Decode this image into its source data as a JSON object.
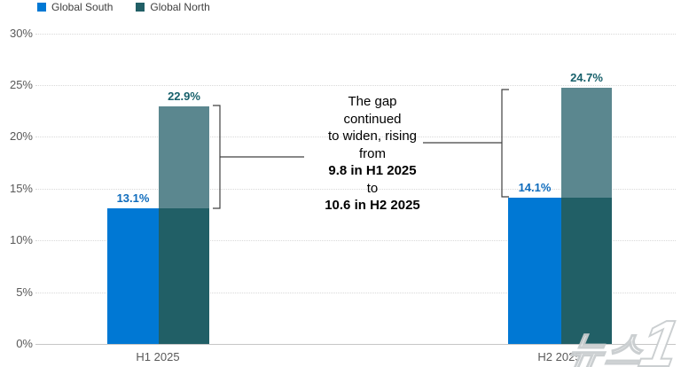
{
  "legend": {
    "items": [
      {
        "label": "Global South",
        "color": "#0078d4"
      },
      {
        "label": "Global North",
        "color": "#215f66"
      }
    ]
  },
  "chart_data": {
    "type": "bar",
    "categories": [
      "H1 2025",
      "H2 2025"
    ],
    "series": [
      {
        "name": "Global South",
        "color": "#0078d4",
        "label_color": "#0f6cbd",
        "values": [
          13.1,
          14.1
        ],
        "labels": [
          "13.1%",
          "14.1%"
        ]
      },
      {
        "name": "Global North",
        "color": "#5b878f",
        "overlap_color": "#215f66",
        "label_color": "#17606b",
        "values": [
          22.9,
          24.7
        ],
        "labels": [
          "22.9%",
          "24.7%"
        ]
      }
    ],
    "gaps": [
      9.8,
      10.6
    ],
    "title": "",
    "xlabel": "",
    "ylabel": "",
    "ylim": [
      0,
      30
    ],
    "ytick_labels": [
      "30%",
      "25%",
      "20%",
      "15%",
      "10%",
      "5%",
      "0%"
    ],
    "ytick_values": [
      30,
      25,
      20,
      15,
      10,
      5,
      0
    ],
    "grid": "horizontal-dotted",
    "legend_position": "top-left"
  },
  "annotation": {
    "lines": [
      {
        "text": "The gap",
        "bold": false
      },
      {
        "text": "continued",
        "bold": false
      },
      {
        "text": "to widen, rising",
        "bold": false
      },
      {
        "text": "from",
        "bold": false
      },
      {
        "text": "9.8 in H1 2025",
        "bold": true
      },
      {
        "text": "to",
        "bold": false
      },
      {
        "text": "10.6 in H2 2025",
        "bold": true
      }
    ]
  },
  "watermark": {
    "text": "뉴스",
    "number": "1"
  }
}
